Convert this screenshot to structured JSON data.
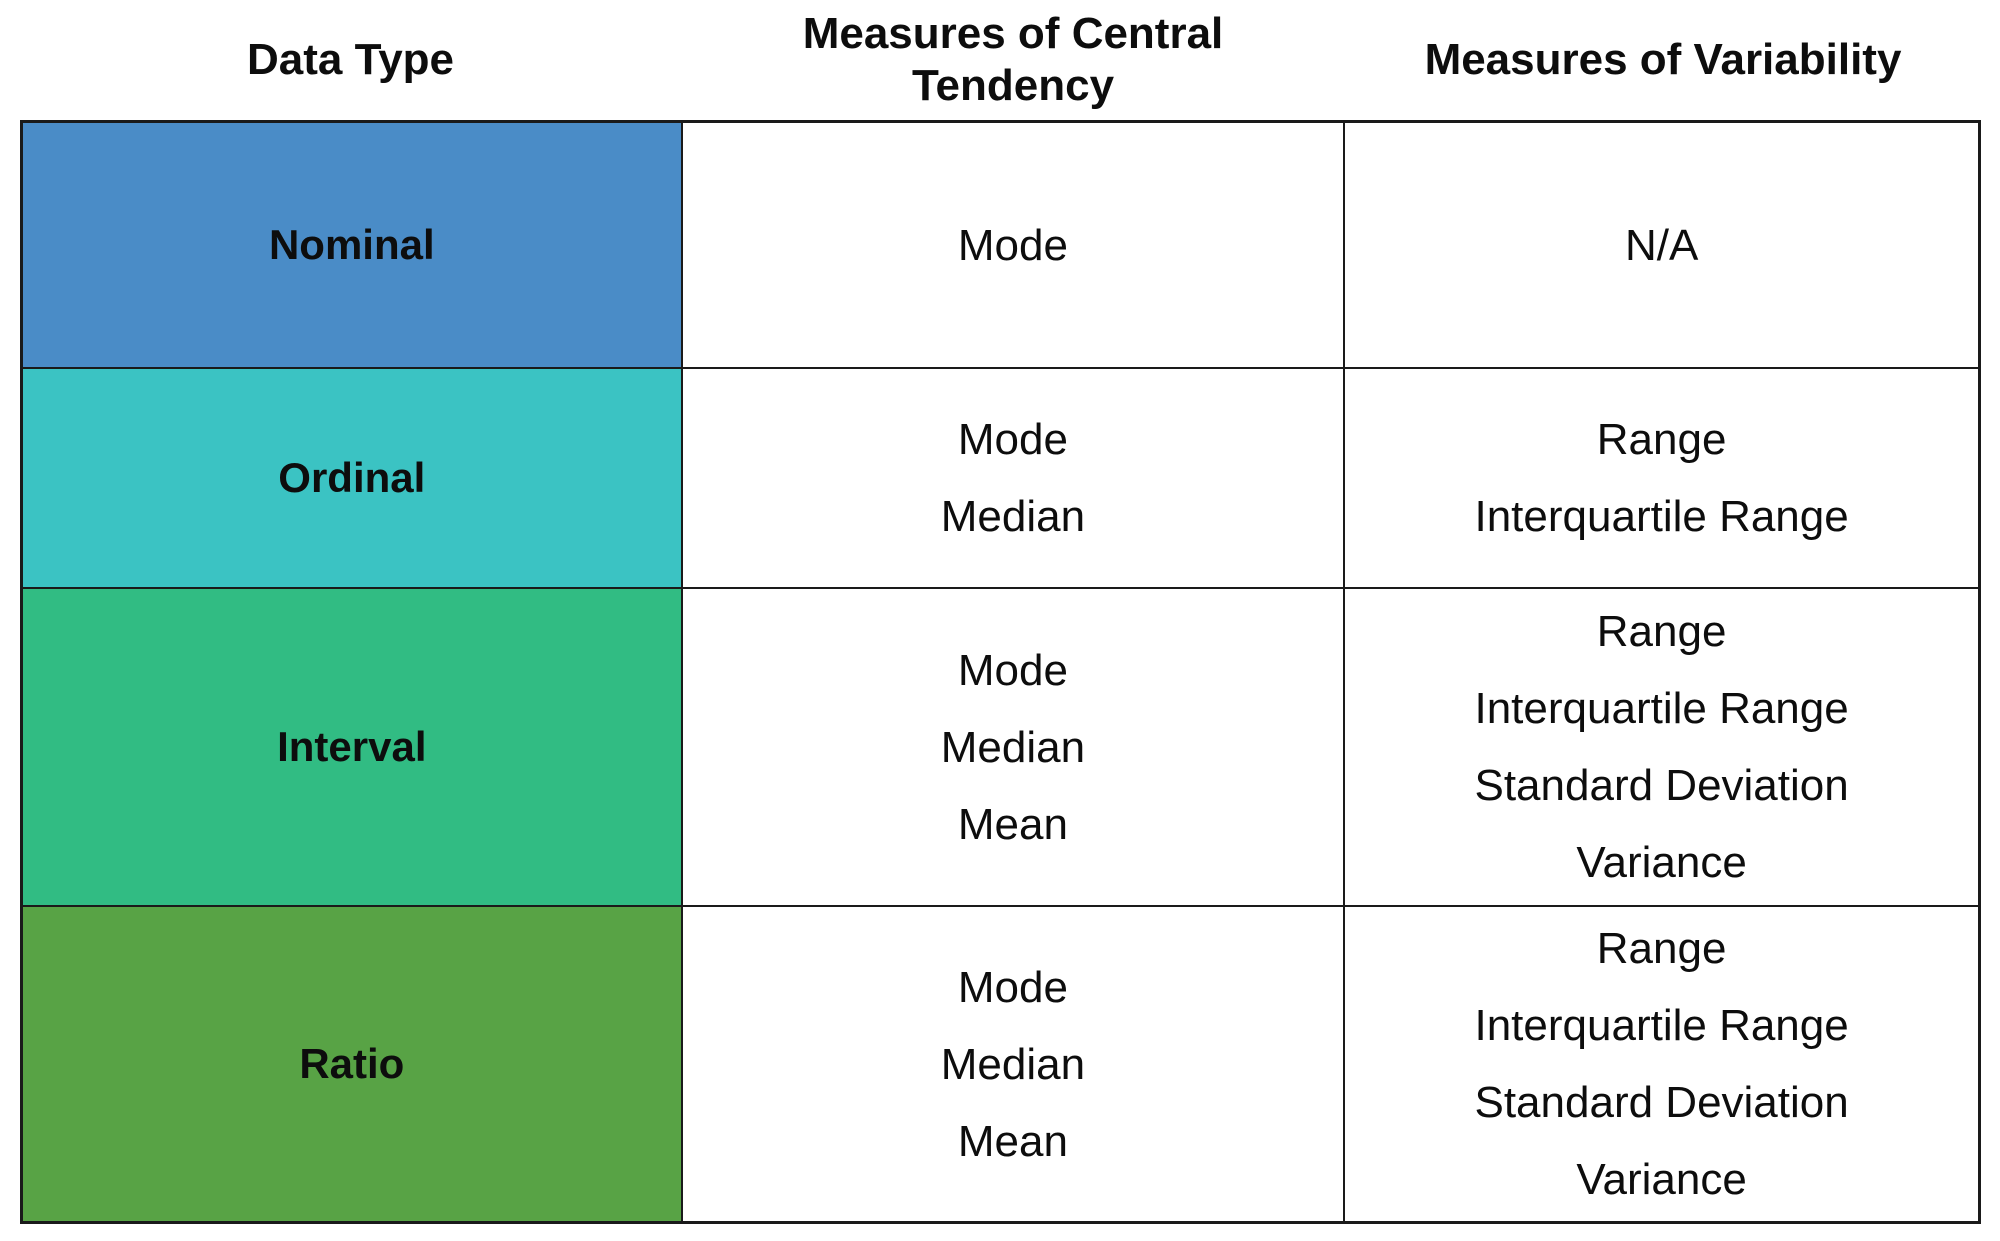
{
  "chart_data": {
    "type": "table",
    "columns": [
      "Data Type",
      "Measures of Central Tendency",
      "Measures of Variability"
    ],
    "rows": [
      {
        "data_type": "Nominal",
        "row_color": "#4a8cc7",
        "central_tendency": [
          "Mode"
        ],
        "variability": [
          "N/A"
        ]
      },
      {
        "data_type": "Ordinal",
        "row_color": "#3bc3c3",
        "central_tendency": [
          "Mode",
          "Median"
        ],
        "variability": [
          "Range",
          "Interquartile Range"
        ]
      },
      {
        "data_type": "Interval",
        "row_color": "#31bc83",
        "central_tendency": [
          "Mode",
          "Median",
          "Mean"
        ],
        "variability": [
          "Range",
          "Interquartile Range",
          "Standard Deviation",
          "Variance"
        ]
      },
      {
        "data_type": "Ratio",
        "row_color": "#58a345",
        "central_tendency": [
          "Mode",
          "Median",
          "Mean"
        ],
        "variability": [
          "Range",
          "Interquartile Range",
          "Standard Deviation",
          "Variance"
        ]
      }
    ],
    "layout": {
      "grid": "on",
      "header_position": "above-table",
      "colors": {
        "border": "#1a1a1a",
        "text": "#0d0d0d",
        "background": "#ffffff"
      }
    }
  }
}
